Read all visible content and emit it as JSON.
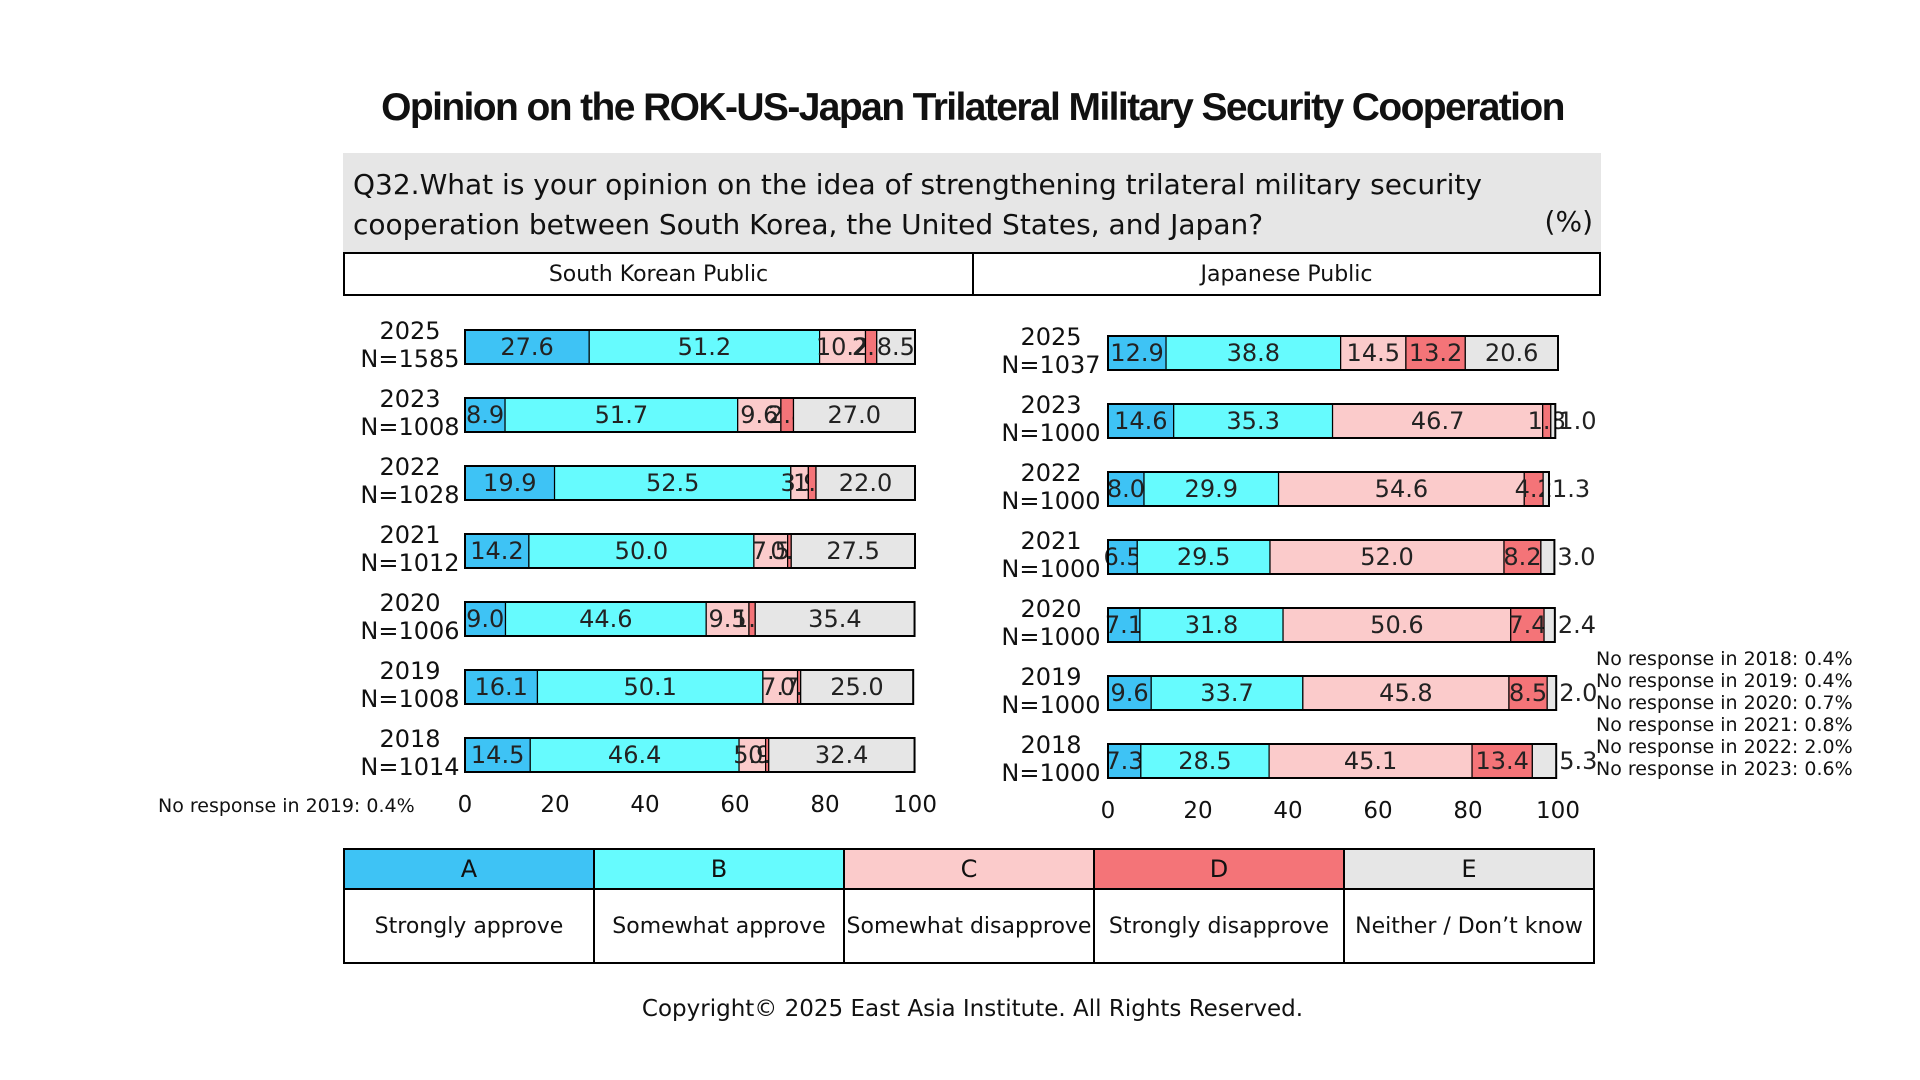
{
  "title": "Opinion on the ROK-US-Japan Trilateral Military Security Cooperation",
  "question": {
    "text": "Q32.What is your opinion on the idea of strengthening trilateral military security cooperation between South Korea, the United States, and Japan?",
    "unit": "(%)"
  },
  "colors": {
    "A": "#3ec3f5",
    "B": "#66fbfe",
    "C": "#fbcbcb",
    "D": "#f47478",
    "E": "#e6e6e6"
  },
  "legend": [
    {
      "letter": "A",
      "label": "Strongly approve"
    },
    {
      "letter": "B",
      "label": "Somewhat approve"
    },
    {
      "letter": "C",
      "label": "Somewhat disapprove"
    },
    {
      "letter": "D",
      "label": "Strongly disapprove"
    },
    {
      "letter": "E",
      "label": "Neither / Don’t know"
    }
  ],
  "chart_data": [
    {
      "type": "bar",
      "orientation": "horizontal",
      "stacked": true,
      "title": "South Korean Public",
      "categories": [
        "2025\nN=1585",
        "2023\nN=1008",
        "2022\nN=1028",
        "2021\nN=1012",
        "2020\nN=1006",
        "2019\nN=1008",
        "2018\nN=1014"
      ],
      "series": [
        {
          "name": "A",
          "values": [
            27.6,
            8.9,
            19.9,
            14.2,
            9.0,
            16.1,
            14.5
          ]
        },
        {
          "name": "B",
          "values": [
            51.2,
            51.7,
            52.5,
            50.0,
            44.6,
            50.1,
            46.4
          ]
        },
        {
          "name": "C",
          "values": [
            10.2,
            9.6,
            3.9,
            7.5,
            9.5,
            7.7,
            5.9
          ]
        },
        {
          "name": "D",
          "values": [
            2.5,
            2.8,
            1.7,
            0.8,
            1.4,
            0.7,
            0.7
          ]
        },
        {
          "name": "E",
          "values": [
            8.5,
            27.0,
            22.0,
            27.5,
            35.4,
            25.0,
            32.4
          ]
        }
      ],
      "xlim": [
        0,
        100
      ],
      "xticks": [
        0,
        20,
        40,
        60,
        80,
        100
      ],
      "note": "No response in 2019: 0.4%"
    },
    {
      "type": "bar",
      "orientation": "horizontal",
      "stacked": true,
      "title": "Japanese Public",
      "categories": [
        "2025\nN=1037",
        "2023\nN=1000",
        "2022\nN=1000",
        "2021\nN=1000",
        "2020\nN=1000",
        "2019\nN=1000",
        "2018\nN=1000"
      ],
      "series": [
        {
          "name": "A",
          "values": [
            12.9,
            14.6,
            8.0,
            6.5,
            7.1,
            9.6,
            7.3
          ]
        },
        {
          "name": "B",
          "values": [
            38.8,
            35.3,
            29.9,
            29.5,
            31.8,
            33.7,
            28.5
          ]
        },
        {
          "name": "C",
          "values": [
            14.5,
            46.7,
            54.6,
            52.0,
            50.6,
            45.8,
            45.1
          ]
        },
        {
          "name": "D",
          "values": [
            13.2,
            1.8,
            4.2,
            8.2,
            7.4,
            8.5,
            13.4
          ]
        },
        {
          "name": "E",
          "values": [
            20.6,
            1.0,
            1.3,
            3.0,
            2.4,
            2.0,
            5.3
          ]
        }
      ],
      "xlim": [
        0,
        100
      ],
      "xticks": [
        0,
        20,
        40,
        60,
        80,
        100
      ],
      "notes": [
        "No response in 2018: 0.4%",
        "No response in 2019: 0.4%",
        "No response in 2020: 0.7%",
        "No response in 2021: 0.8%",
        "No response in 2022: 2.0%",
        "No response in 2023: 0.6%"
      ]
    }
  ],
  "footer": "Copyright© 2025 East Asia Institute. All Rights Reserved."
}
